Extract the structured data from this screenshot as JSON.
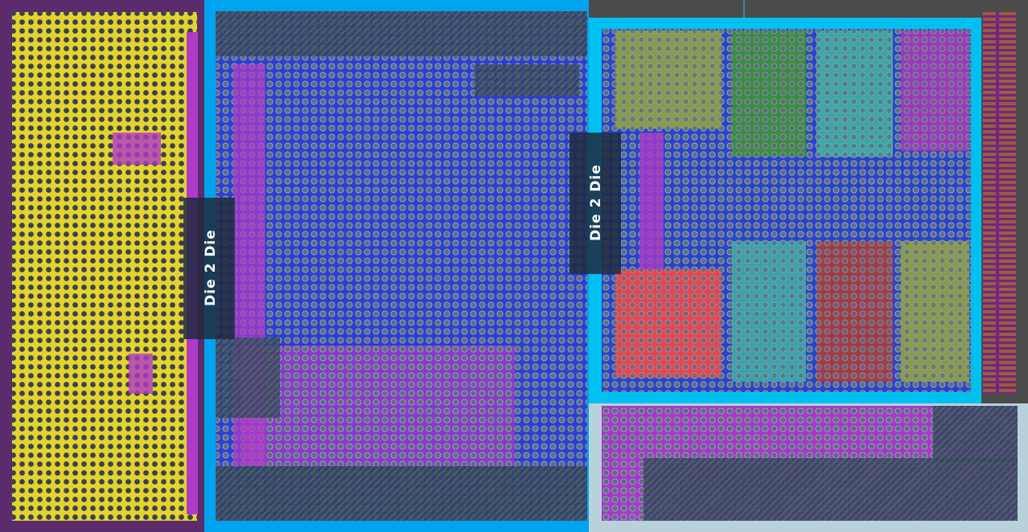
{
  "labels": [
    "Die 2 Die",
    "Die 2 Die"
  ]
}
